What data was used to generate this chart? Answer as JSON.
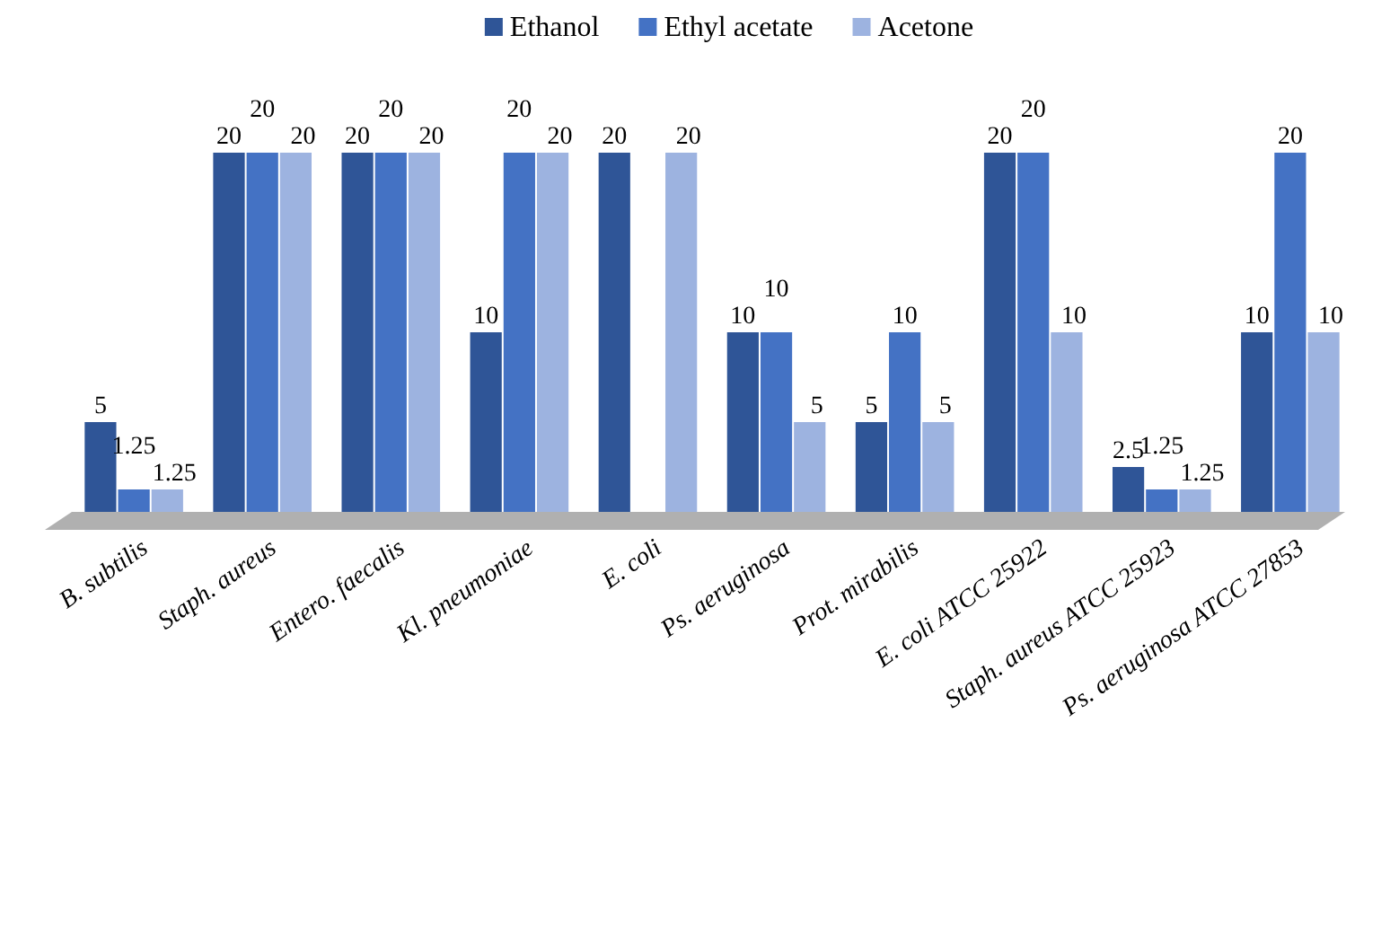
{
  "chart_data": {
    "type": "bar",
    "categories": [
      "B. subtilis",
      "Staph. aureus",
      "Entero. faecalis",
      "Kl. pneumoniae",
      "E. coli",
      "Ps. aeruginosa",
      "Prot. mirabilis",
      "E. coli ATCC 25922",
      "Staph. aureus ATCC 25923",
      "Ps. aeruginosa ATCC 27853"
    ],
    "series": [
      {
        "name": "Ethanol",
        "color": "#2f5597",
        "values": [
          5,
          20,
          20,
          10,
          20,
          10,
          5,
          20,
          2.5,
          10
        ]
      },
      {
        "name": "Ethyl acetate",
        "color": "#4472c4",
        "values": [
          1.25,
          20,
          20,
          20,
          null,
          10,
          10,
          20,
          1.25,
          20
        ]
      },
      {
        "name": "Acetone",
        "color": "#9db3e0",
        "values": [
          1.25,
          20,
          20,
          20,
          20,
          5,
          5,
          10,
          1.25,
          10
        ]
      }
    ],
    "data_labels": true,
    "legend": "top"
  }
}
